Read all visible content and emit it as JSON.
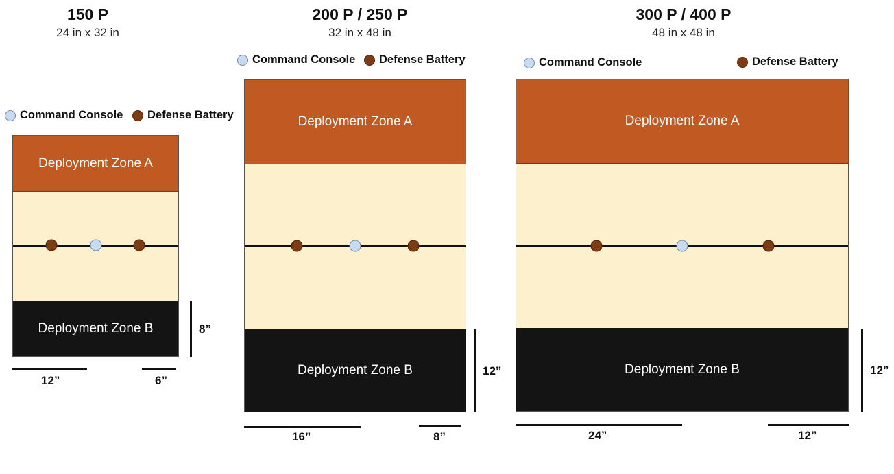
{
  "boards": [
    {
      "title": "150 P",
      "size": "24 in x 32 in",
      "legend": {
        "console": "Command Console",
        "battery": "Defense Battery"
      },
      "zone_a": "Deployment Zone A",
      "zone_b": "Deployment Zone B",
      "depth_label": "8”",
      "bottom_labels": [
        "12”",
        "6”"
      ]
    },
    {
      "title": "200 P / 250 P",
      "size": "32 in x 48 in",
      "legend": {
        "console": "Command Console",
        "battery": "Defense Battery"
      },
      "zone_a": "Deployment Zone A",
      "zone_b": "Deployment Zone B",
      "depth_label": "12”",
      "bottom_labels": [
        "16”",
        "8”"
      ]
    },
    {
      "title": "300 P / 400 P",
      "size": "48 in x 48 in",
      "legend": {
        "console": "Command Console",
        "battery": "Defense Battery"
      },
      "zone_a": "Deployment Zone A",
      "zone_b": "Deployment Zone B",
      "depth_label": "12”",
      "bottom_labels": [
        "24”",
        "12”"
      ]
    }
  ],
  "colors": {
    "zone_a": "#c05a22",
    "zone_b": "#141414",
    "neutral": "#fdf0cc",
    "console": "#c7dcf2",
    "battery": "#7e3c14"
  },
  "icons": {
    "console": "light-blue-circle",
    "battery": "brown-circle"
  }
}
